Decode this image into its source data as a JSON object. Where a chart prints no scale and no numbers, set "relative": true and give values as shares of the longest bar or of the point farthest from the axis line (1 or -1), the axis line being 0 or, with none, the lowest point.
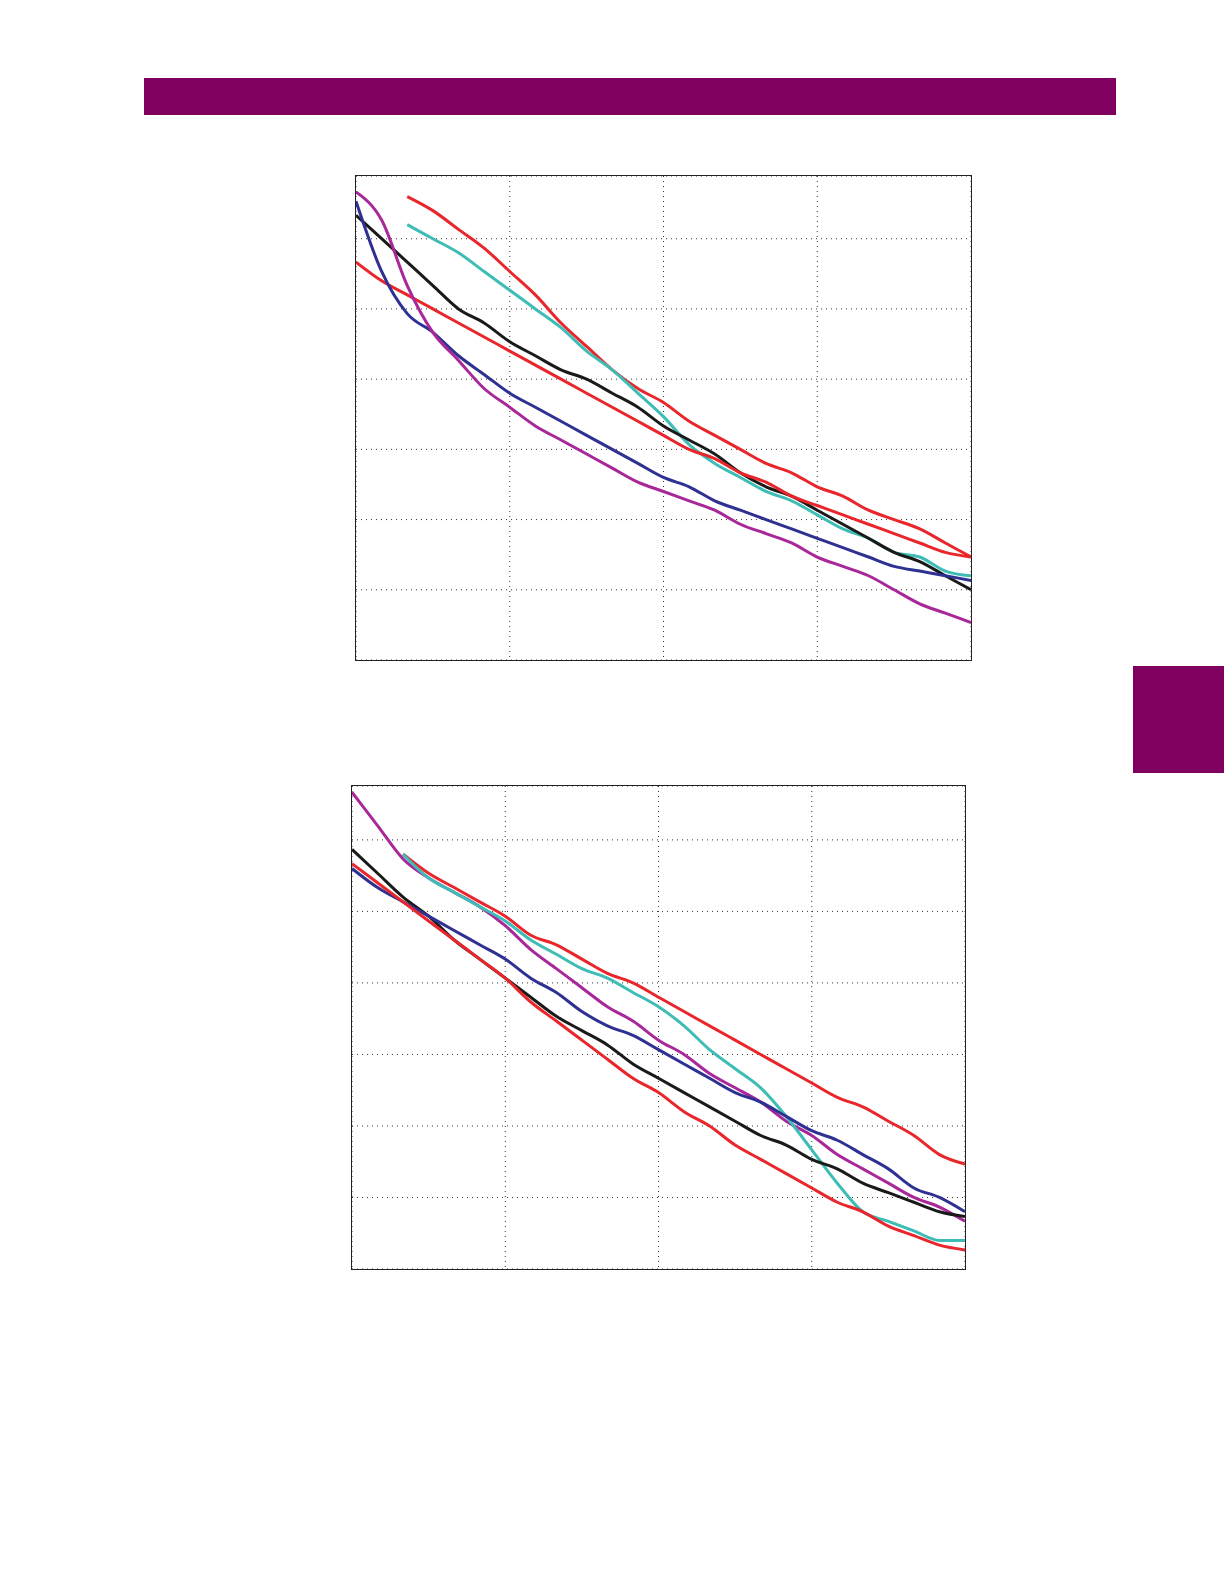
{
  "chart_data": [
    {
      "type": "line",
      "relative": true,
      "grid": true,
      "legend": false,
      "categories": [
        null,
        null,
        null,
        null,
        null,
        null,
        null,
        null,
        null,
        null,
        null,
        null,
        null,
        null,
        null,
        null,
        null,
        null,
        null,
        null,
        null,
        null,
        null,
        null,
        null
      ],
      "series": [
        {
          "color": "#e8262b",
          "values": [
            null,
            null,
            0.99,
            0.96,
            0.92,
            0.88,
            0.83,
            0.78,
            0.72,
            0.67,
            0.62,
            0.58,
            0.55,
            0.51,
            0.48,
            0.45,
            0.42,
            0.4,
            0.37,
            0.35,
            0.32,
            0.3,
            0.28,
            0.25,
            0.22
          ]
        },
        {
          "color": "#3dbdb5",
          "values": [
            null,
            null,
            0.93,
            0.9,
            0.87,
            0.83,
            0.79,
            0.75,
            0.71,
            0.66,
            0.62,
            0.57,
            0.52,
            0.46,
            0.42,
            0.39,
            0.36,
            0.34,
            0.31,
            0.28,
            0.26,
            0.23,
            0.22,
            0.19,
            0.18
          ]
        },
        {
          "color": "#1a1a1a",
          "values": [
            0.95,
            0.9,
            0.85,
            0.8,
            0.75,
            0.72,
            0.68,
            0.65,
            0.62,
            0.6,
            0.57,
            0.54,
            0.5,
            0.47,
            0.44,
            0.4,
            0.37,
            0.35,
            0.32,
            0.29,
            0.26,
            0.23,
            0.21,
            0.18,
            0.15
          ]
        },
        {
          "color": "#e8262b",
          "values": [
            0.85,
            0.81,
            0.78,
            0.75,
            0.72,
            0.69,
            0.66,
            0.63,
            0.6,
            0.57,
            0.54,
            0.51,
            0.48,
            0.45,
            0.43,
            0.4,
            0.38,
            0.35,
            0.33,
            0.31,
            0.29,
            0.27,
            0.25,
            0.23,
            0.22
          ]
        },
        {
          "color": "#2e3192",
          "values": [
            0.98,
            0.83,
            0.74,
            0.7,
            0.65,
            0.61,
            0.57,
            0.54,
            0.51,
            0.48,
            0.45,
            0.42,
            0.39,
            0.37,
            0.34,
            0.32,
            0.3,
            0.28,
            0.26,
            0.24,
            0.22,
            0.2,
            0.19,
            0.18,
            0.17
          ]
        },
        {
          "color": "#a8289a",
          "values": [
            1,
            0.94,
            0.8,
            0.7,
            0.64,
            0.58,
            0.54,
            0.5,
            0.47,
            0.44,
            0.41,
            0.38,
            0.36,
            0.34,
            0.32,
            0.29,
            0.27,
            0.25,
            0.22,
            0.2,
            0.18,
            0.15,
            0.12,
            0.1,
            0.08
          ]
        }
      ]
    },
    {
      "type": "line",
      "relative": true,
      "grid": true,
      "legend": false,
      "categories": [
        null,
        null,
        null,
        null,
        null,
        null,
        null,
        null,
        null,
        null,
        null,
        null,
        null,
        null,
        null,
        null,
        null,
        null,
        null,
        null,
        null,
        null,
        null,
        null,
        null
      ],
      "series": [
        {
          "color": "#a8289a",
          "values": [
            1,
            0.93,
            0.86,
            0.82,
            0.79,
            0.76,
            0.72,
            0.67,
            0.63,
            0.59,
            0.55,
            0.52,
            0.48,
            0.45,
            0.41,
            0.38,
            0.35,
            0.31,
            0.28,
            0.24,
            0.21,
            0.18,
            0.15,
            0.13,
            0.1
          ]
        },
        {
          "color": "#e8262b",
          "values": [
            null,
            null,
            0.87,
            0.83,
            0.8,
            0.77,
            0.74,
            0.7,
            0.68,
            0.65,
            0.62,
            0.6,
            0.57,
            0.54,
            0.51,
            0.48,
            0.45,
            0.42,
            0.39,
            0.36,
            0.34,
            0.31,
            0.28,
            0.24,
            0.22
          ]
        },
        {
          "color": "#3dbdb5",
          "values": [
            null,
            null,
            0.87,
            0.82,
            0.79,
            0.76,
            0.73,
            0.69,
            0.66,
            0.63,
            0.61,
            0.58,
            0.55,
            0.51,
            0.46,
            0.42,
            0.38,
            0.32,
            0.25,
            0.18,
            0.12,
            0.1,
            0.08,
            0.06,
            0.06
          ]
        },
        {
          "color": "#1a1a1a",
          "values": [
            0.88,
            0.83,
            0.78,
            0.74,
            0.69,
            0.65,
            0.61,
            0.57,
            0.53,
            0.5,
            0.47,
            0.43,
            0.4,
            0.37,
            0.34,
            0.31,
            0.28,
            0.26,
            0.23,
            0.21,
            0.18,
            0.16,
            0.14,
            0.12,
            0.11
          ]
        },
        {
          "color": "#2e3192",
          "values": [
            0.84,
            0.8,
            0.77,
            0.74,
            0.71,
            0.68,
            0.65,
            0.61,
            0.58,
            0.54,
            0.51,
            0.49,
            0.46,
            0.43,
            0.4,
            0.37,
            0.35,
            0.32,
            0.29,
            0.27,
            0.24,
            0.21,
            0.17,
            0.15,
            0.12
          ]
        },
        {
          "color": "#e8262b",
          "values": [
            0.85,
            0.81,
            0.77,
            0.73,
            0.69,
            0.65,
            0.61,
            0.56,
            0.52,
            0.48,
            0.44,
            0.4,
            0.37,
            0.33,
            0.3,
            0.26,
            0.23,
            0.2,
            0.17,
            0.14,
            0.12,
            0.09,
            0.07,
            0.05,
            0.04
          ]
        }
      ]
    }
  ]
}
